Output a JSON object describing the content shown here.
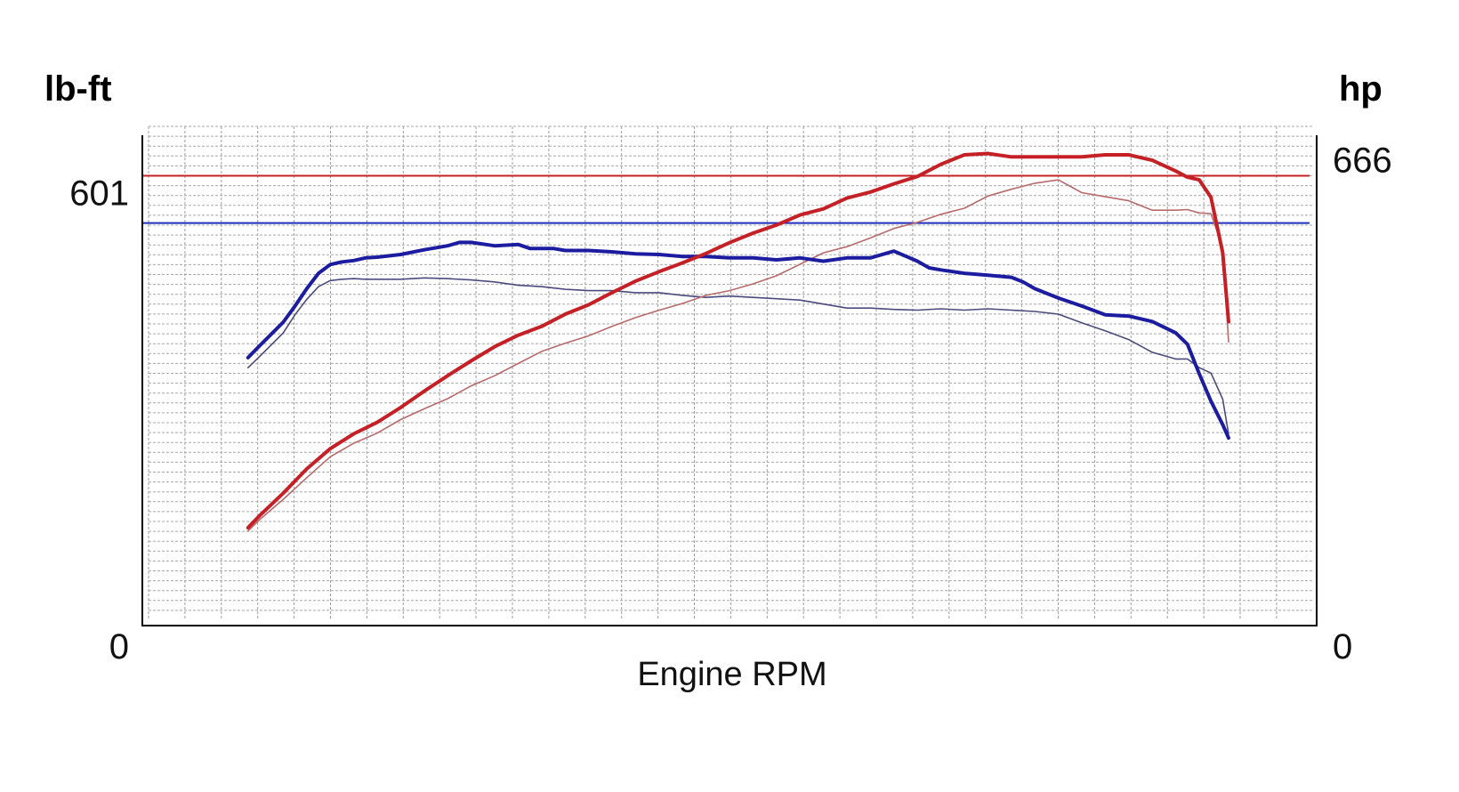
{
  "chart_data": {
    "type": "line",
    "title": "",
    "xlabel": "Engine RPM",
    "ylabel_left": "lb-ft",
    "ylabel_right": "hp",
    "left_axis": {
      "min": 0,
      "max": 732,
      "ticks": [
        {
          "value": 0,
          "label": "0"
        },
        {
          "value": 601,
          "label": "601"
        }
      ]
    },
    "right_axis": {
      "min": 0,
      "max": 726,
      "ticks": [
        {
          "value": 0,
          "label": "0"
        },
        {
          "value": 666,
          "label": "666"
        }
      ]
    },
    "x_range": [
      0,
      100
    ],
    "grid": true,
    "colors": {
      "torque": "#1c1ca0",
      "torque_secondary": "#4a4a7e",
      "power": "#c42026",
      "power_secondary": "#b86a6a",
      "torque_reference": "#1f2fbf",
      "power_reference": "#c42026"
    },
    "reference_lines": [
      {
        "axis": "left",
        "value": 601,
        "color": "#1f2fbf"
      },
      {
        "axis": "right",
        "value": 666,
        "color": "#c42026"
      }
    ],
    "series": [
      {
        "axis": "left",
        "style": "bold",
        "color": "#1c1ca0",
        "x": [
          9,
          10,
          12,
          13,
          14,
          15,
          16,
          17,
          18,
          19,
          20,
          22,
          24,
          26,
          27,
          28,
          30,
          32,
          33,
          35,
          36,
          38,
          40,
          42,
          44,
          46,
          48,
          50,
          52,
          54,
          56,
          58,
          60,
          62,
          64,
          66,
          67,
          68,
          70,
          72,
          74,
          75,
          76,
          78,
          80,
          82,
          84,
          86,
          88,
          89,
          90,
          91,
          92,
          92.5
        ],
        "y": [
          400,
          418,
          453,
          477,
          503,
          526,
          539,
          543,
          545,
          549,
          550,
          554,
          561,
          567,
          572,
          572,
          567,
          569,
          563,
          563,
          560,
          560,
          558,
          555,
          554,
          551,
          551,
          549,
          549,
          546,
          549,
          544,
          549,
          549,
          559,
          544,
          534,
          531,
          526,
          523,
          520,
          513,
          503,
          489,
          477,
          464,
          462,
          454,
          437,
          420,
          376,
          335,
          300,
          280
        ]
      },
      {
        "axis": "left",
        "style": "thin",
        "color": "#4a4a7e",
        "x": [
          9,
          10,
          12,
          13,
          14,
          15,
          16,
          17,
          18,
          19,
          20,
          22,
          24,
          26,
          28,
          30,
          32,
          34,
          36,
          38,
          40,
          42,
          44,
          46,
          48,
          50,
          52,
          54,
          56,
          58,
          60,
          62,
          64,
          66,
          68,
          70,
          72,
          74,
          76,
          78,
          80,
          82,
          84,
          86,
          88,
          89,
          90,
          91,
          92,
          92.5
        ],
        "y": [
          385,
          402,
          437,
          464,
          487,
          506,
          515,
          517,
          518,
          517,
          517,
          517,
          519,
          518,
          516,
          513,
          508,
          506,
          502,
          500,
          500,
          497,
          497,
          493,
          490,
          492,
          490,
          488,
          486,
          480,
          474,
          474,
          472,
          471,
          473,
          471,
          473,
          471,
          469,
          465,
          452,
          440,
          427,
          408,
          398,
          398,
          385,
          377,
          338,
          286
        ]
      },
      {
        "axis": "right",
        "style": "bold",
        "color": "#c42026",
        "x": [
          9,
          10,
          12,
          14,
          16,
          18,
          20,
          22,
          24,
          26,
          28,
          30,
          32,
          34,
          36,
          38,
          40,
          42,
          44,
          46,
          48,
          50,
          52,
          54,
          56,
          58,
          60,
          62,
          64,
          66,
          68,
          70,
          72,
          74,
          76,
          78,
          80,
          82,
          84,
          86,
          88,
          89,
          90,
          91,
          92,
          92.5
        ],
        "y": [
          145,
          163,
          196,
          232,
          262,
          284,
          301,
          323,
          347,
          370,
          392,
          413,
          430,
          443,
          461,
          475,
          493,
          510,
          524,
          537,
          551,
          567,
          581,
          593,
          608,
          617,
          633,
          642,
          654,
          665,
          683,
          697,
          699,
          694,
          694,
          694,
          694,
          697,
          697,
          689,
          673,
          664,
          660,
          634,
          552,
          450
        ]
      },
      {
        "axis": "right",
        "style": "thin",
        "color": "#b86a6a",
        "x": [
          9,
          10,
          12,
          14,
          16,
          18,
          20,
          22,
          24,
          26,
          28,
          30,
          32,
          34,
          36,
          38,
          40,
          42,
          44,
          46,
          48,
          50,
          52,
          54,
          56,
          58,
          60,
          62,
          64,
          66,
          68,
          70,
          72,
          74,
          76,
          78,
          80,
          82,
          84,
          86,
          88,
          89,
          90,
          91,
          92,
          92.5
        ],
        "y": [
          140,
          157,
          187,
          219,
          250,
          270,
          285,
          305,
          321,
          336,
          355,
          370,
          388,
          406,
          418,
          429,
          443,
          456,
          467,
          477,
          489,
          496,
          506,
          518,
          535,
          552,
          561,
          574,
          588,
          597,
          609,
          618,
          636,
          646,
          655,
          660,
          641,
          635,
          629,
          615,
          615,
          616,
          611,
          610,
          560,
          420
        ]
      }
    ]
  }
}
